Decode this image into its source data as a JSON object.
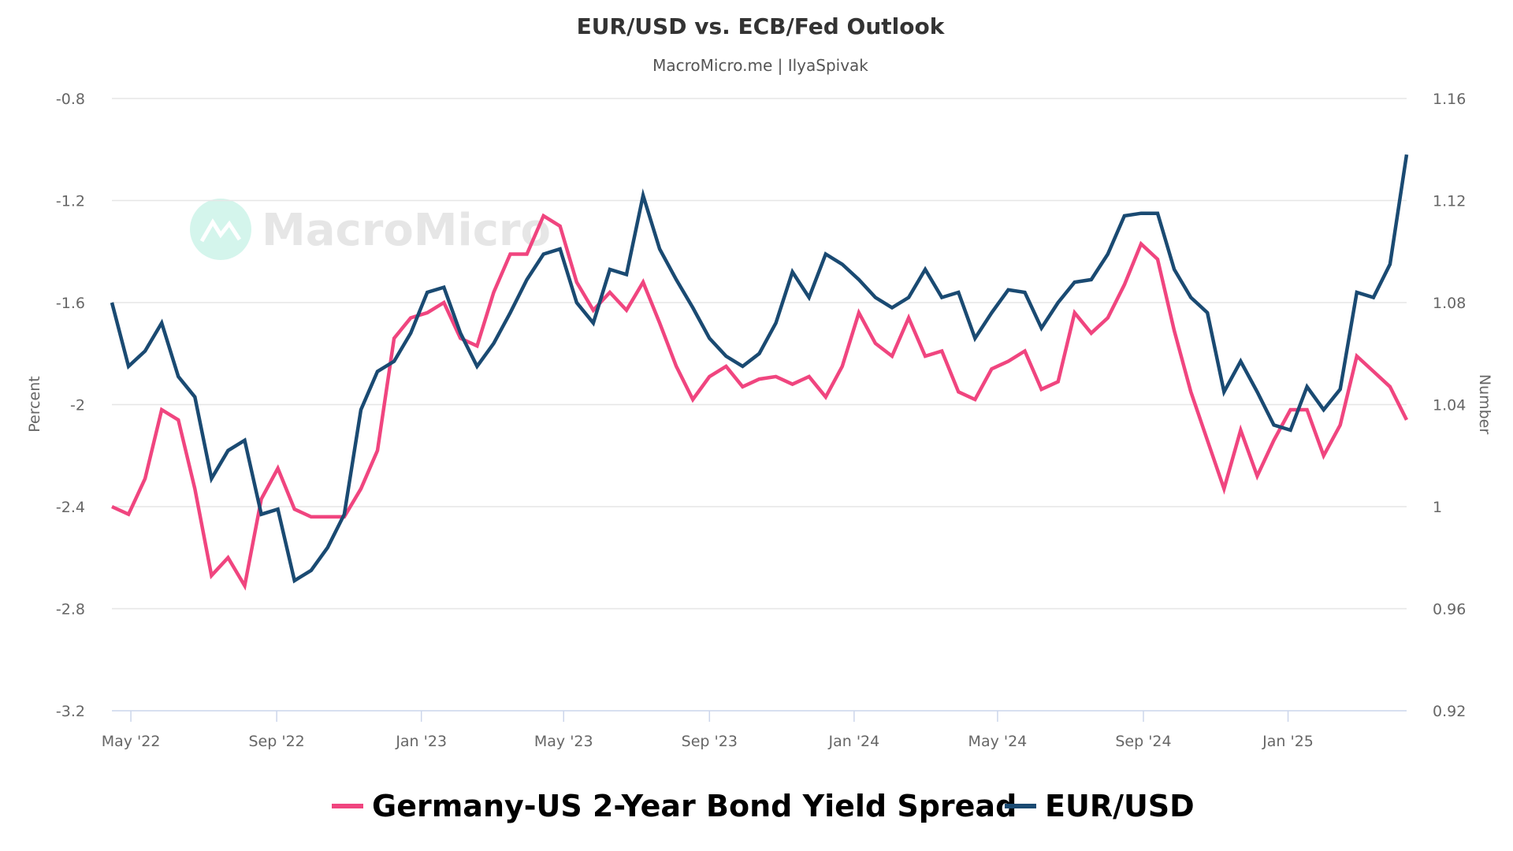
{
  "chart_data": {
    "type": "line",
    "title": "EUR/USD vs. ECB/Fed Outlook",
    "subtitle": "MacroMicro.me | IlyaSpivak",
    "watermark": "MacroMicro",
    "y_left": {
      "label": "Percent",
      "range": [
        -3.2,
        -0.8
      ],
      "ticks": [
        -0.8,
        -1.2,
        -1.6,
        -2,
        -2.4,
        -2.8,
        -3.2
      ],
      "tick_labels": [
        "-0.8",
        "-1.2",
        "-1.6",
        "-2",
        "-2.4",
        "-2.8",
        "-3.2"
      ]
    },
    "y_right": {
      "label": "Number",
      "range": [
        0.92,
        1.16
      ],
      "ticks": [
        1.16,
        1.12,
        1.08,
        1.04,
        1,
        0.96,
        0.92
      ],
      "tick_labels": [
        "1.16",
        "1.12",
        "1.08",
        "1.04",
        "1",
        "0.96",
        "0.92"
      ]
    },
    "x_axis": {
      "range": [
        "2022-04-15",
        "2025-04-11"
      ],
      "ticks": [
        "2022-05-01",
        "2022-09-01",
        "2023-01-01",
        "2023-05-01",
        "2023-09-01",
        "2024-01-01",
        "2024-05-01",
        "2024-09-01",
        "2025-01-01"
      ],
      "tick_labels": [
        "May '22",
        "Sep '22",
        "Jan '23",
        "May '23",
        "Sep '23",
        "Jan '24",
        "May '24",
        "Sep '24",
        "Jan '25"
      ]
    },
    "grid": true,
    "legend_position": "bottom",
    "x": [
      "2022-04-15",
      "2022-04-29",
      "2022-05-13",
      "2022-05-27",
      "2022-06-10",
      "2022-06-24",
      "2022-07-08",
      "2022-07-22",
      "2022-08-05",
      "2022-08-19",
      "2022-09-02",
      "2022-09-16",
      "2022-09-30",
      "2022-10-14",
      "2022-10-28",
      "2022-11-11",
      "2022-11-25",
      "2022-12-09",
      "2022-12-23",
      "2023-01-06",
      "2023-01-20",
      "2023-02-03",
      "2023-02-17",
      "2023-03-03",
      "2023-03-17",
      "2023-03-31",
      "2023-04-14",
      "2023-04-28",
      "2023-05-12",
      "2023-05-26",
      "2023-06-09",
      "2023-06-23",
      "2023-07-07",
      "2023-07-21",
      "2023-08-04",
      "2023-08-18",
      "2023-09-01",
      "2023-09-15",
      "2023-09-29",
      "2023-10-13",
      "2023-10-27",
      "2023-11-10",
      "2023-11-24",
      "2023-12-08",
      "2023-12-22",
      "2024-01-05",
      "2024-01-19",
      "2024-02-02",
      "2024-02-16",
      "2024-03-01",
      "2024-03-15",
      "2024-03-29",
      "2024-04-12",
      "2024-04-26",
      "2024-05-10",
      "2024-05-24",
      "2024-06-07",
      "2024-06-21",
      "2024-07-05",
      "2024-07-19",
      "2024-08-02",
      "2024-08-16",
      "2024-08-30",
      "2024-09-13",
      "2024-09-27",
      "2024-10-11",
      "2024-10-25",
      "2024-11-08",
      "2024-11-22",
      "2024-12-06",
      "2024-12-20",
      "2025-01-03",
      "2025-01-17",
      "2025-01-31",
      "2025-02-14",
      "2025-02-28",
      "2025-03-14",
      "2025-03-28",
      "2025-04-11"
    ],
    "series": [
      {
        "name": "Germany-US 2-Year Bond Yield Spread",
        "axis": "left",
        "color": "#f0457f",
        "values": [
          -2.4,
          -2.43,
          -2.29,
          -2.02,
          -2.06,
          -2.33,
          -2.67,
          -2.6,
          -2.71,
          -2.37,
          -2.25,
          -2.41,
          -2.44,
          -2.44,
          -2.44,
          -2.33,
          -2.18,
          -1.74,
          -1.66,
          -1.64,
          -1.6,
          -1.74,
          -1.77,
          -1.56,
          -1.41,
          -1.41,
          -1.26,
          -1.3,
          -1.52,
          -1.63,
          -1.56,
          -1.63,
          -1.52,
          -1.68,
          -1.85,
          -1.98,
          -1.89,
          -1.85,
          -1.93,
          -1.9,
          -1.89,
          -1.92,
          -1.89,
          -1.97,
          -1.85,
          -1.64,
          -1.76,
          -1.81,
          -1.66,
          -1.81,
          -1.79,
          -1.95,
          -1.98,
          -1.86,
          -1.83,
          -1.79,
          -1.94,
          -1.91,
          -1.64,
          -1.72,
          -1.66,
          -1.53,
          -1.37,
          -1.43,
          -1.71,
          -1.95,
          -2.14,
          -2.33,
          -2.1,
          -2.28,
          -2.14,
          -2.02,
          -2.02,
          -2.2,
          -2.08,
          -1.81,
          -1.87,
          -1.93,
          -2.06
        ]
      },
      {
        "name": "EUR/USD",
        "axis": "right",
        "color": "#1a4a72",
        "values": [
          1.08,
          1.055,
          1.061,
          1.072,
          1.051,
          1.043,
          1.011,
          1.022,
          1.026,
          0.997,
          0.999,
          0.971,
          0.975,
          0.984,
          0.997,
          1.038,
          1.053,
          1.057,
          1.068,
          1.084,
          1.086,
          1.068,
          1.055,
          1.064,
          1.076,
          1.089,
          1.099,
          1.101,
          1.08,
          1.072,
          1.093,
          1.091,
          1.122,
          1.101,
          1.089,
          1.078,
          1.066,
          1.059,
          1.055,
          1.06,
          1.072,
          1.092,
          1.082,
          1.099,
          1.095,
          1.089,
          1.082,
          1.078,
          1.082,
          1.093,
          1.082,
          1.084,
          1.066,
          1.076,
          1.085,
          1.084,
          1.07,
          1.08,
          1.088,
          1.089,
          1.099,
          1.114,
          1.115,
          1.115,
          1.093,
          1.082,
          1.076,
          1.045,
          1.057,
          1.045,
          1.032,
          1.03,
          1.047,
          1.038,
          1.046,
          1.084,
          1.082,
          1.095,
          1.138
        ]
      }
    ]
  }
}
